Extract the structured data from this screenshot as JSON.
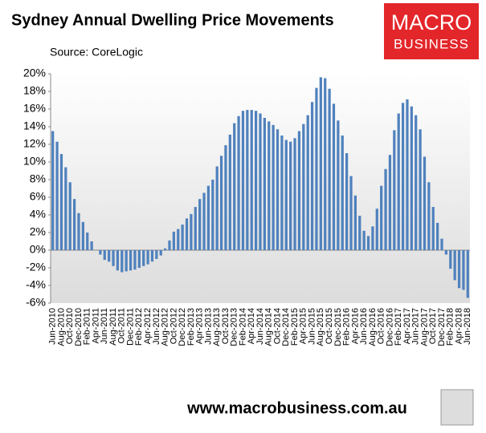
{
  "chart_data": {
    "type": "bar",
    "title": "Sydney Annual Dwelling Price Movements",
    "subtitle": "Source: CoreLogic",
    "logo": [
      "MACRO",
      "BUSINESS"
    ],
    "footer": "www.macrobusiness.com.au",
    "color": "#4f81bd",
    "grid": false,
    "categories": [
      "Jun-2010",
      null,
      "Aug-2010",
      null,
      "Oct-2010",
      null,
      "Dec-2010",
      null,
      "Feb-2011",
      null,
      "Apr-2011",
      null,
      "Jun-2011",
      null,
      "Aug-2011",
      null,
      "Oct-2011",
      null,
      "Dec-2011",
      null,
      "Feb-2012",
      null,
      "Apr-2012",
      null,
      "Jun-2012",
      null,
      "Aug-2012",
      null,
      "Oct-2012",
      null,
      "Dec-2012",
      null,
      "Feb-2013",
      null,
      "Apr-2013",
      null,
      "Jun-2013",
      null,
      "Aug-2013",
      null,
      "Oct-2013",
      null,
      "Dec-2013",
      null,
      "Feb-2014",
      null,
      "Apr-2014",
      null,
      "Jun-2014",
      null,
      "Aug-2014",
      null,
      "Oct-2014",
      null,
      "Dec-2014",
      null,
      "Feb-2015",
      null,
      "Apr-2015",
      null,
      "Jun-2015",
      null,
      "Aug-2015",
      null,
      "Oct-2015",
      null,
      "Dec-2015",
      null,
      "Feb-2016",
      null,
      "Apr-2016",
      null,
      "Jun-2016",
      null,
      "Aug-2016",
      null,
      "Oct-2016",
      null,
      "Dec-2016",
      null,
      "Feb-2017",
      null,
      "Apr-2017",
      null,
      "Jun-2017",
      null,
      "Aug-2017",
      null,
      "Oct-2017",
      null,
      "Dec-2017",
      null,
      "Feb-2018",
      null,
      "Apr-2018",
      null,
      "Jun-2018"
    ],
    "values": [
      13.5,
      12.3,
      10.9,
      9.4,
      7.7,
      5.8,
      4.2,
      3.2,
      2.0,
      1.0,
      0,
      -0.5,
      -1.1,
      -1.3,
      -1.8,
      -2.3,
      -2.5,
      -2.4,
      -2.3,
      -2.2,
      -2.0,
      -1.8,
      -1.6,
      -1.3,
      -1.0,
      -0.6,
      0.2,
      1.1,
      2.1,
      2.4,
      2.9,
      3.6,
      4.1,
      4.9,
      5.8,
      6.5,
      7.3,
      8.0,
      9.5,
      10.7,
      11.9,
      13.1,
      14.4,
      15.2,
      15.8,
      15.9,
      15.9,
      15.8,
      15.5,
      15.0,
      14.6,
      14.2,
      13.7,
      13.0,
      12.5,
      12.3,
      12.7,
      13.5,
      14.3,
      15.3,
      16.8,
      18.4,
      19.6,
      19.5,
      18.3,
      16.6,
      14.7,
      13.0,
      11.0,
      8.4,
      6.2,
      3.9,
      2.2,
      1.6,
      2.7,
      4.7,
      7.3,
      9.2,
      10.8,
      13.6,
      15.5,
      16.7,
      17.1,
      16.3,
      15.3,
      13.7,
      10.6,
      7.7,
      4.9,
      3.1,
      1.3,
      -0.5,
      -2.1,
      -3.4,
      -4.3,
      -4.5,
      -5.4
    ],
    "ylim": [
      -6,
      20
    ],
    "yticks": [
      {
        "value": -6,
        "label": "-6%"
      },
      {
        "value": -4,
        "label": "-4%"
      },
      {
        "value": -2,
        "label": "-2%"
      },
      {
        "value": 0,
        "label": "0%"
      },
      {
        "value": 2,
        "label": "2%"
      },
      {
        "value": 4,
        "label": "4%"
      },
      {
        "value": 6,
        "label": "6%"
      },
      {
        "value": 8,
        "label": "8%"
      },
      {
        "value": 10,
        "label": "10%"
      },
      {
        "value": 12,
        "label": "12%"
      },
      {
        "value": 14,
        "label": "14%"
      },
      {
        "value": 16,
        "label": "16%"
      },
      {
        "value": 18,
        "label": "18%"
      },
      {
        "value": 20,
        "label": "20%"
      }
    ]
  }
}
